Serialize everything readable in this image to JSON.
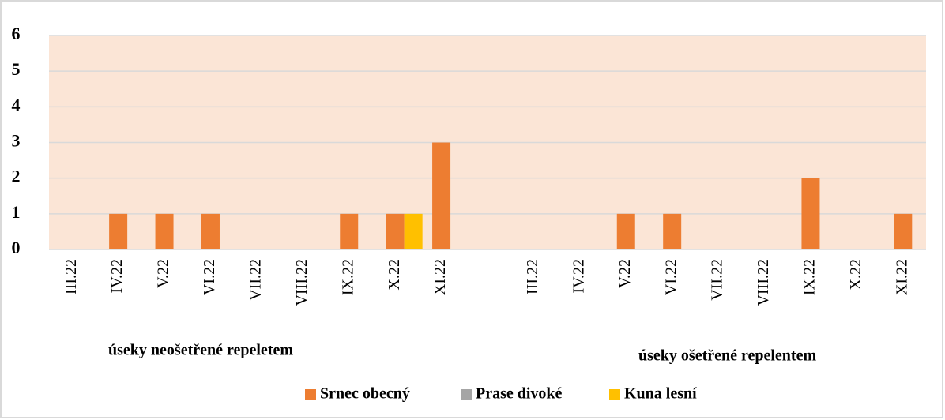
{
  "chart_data": {
    "type": "bar",
    "categories": [
      "III.22",
      "IV.22",
      "V.22",
      "VI.22",
      "VII.22",
      "VIII.22",
      "IX.22",
      "X.22",
      "XI.22",
      null,
      "III.22",
      "IV.22",
      "V.22",
      "VI.22",
      "VII.22",
      "VIII.22",
      "IX.22",
      "X.22",
      "XI.22"
    ],
    "series": [
      {
        "name": "Srnec obecný",
        "color": "#ed7d31",
        "values": [
          0,
          1,
          1,
          1,
          0,
          0,
          1,
          1,
          3,
          null,
          0,
          0,
          1,
          1,
          0,
          0,
          2,
          0,
          1
        ]
      },
      {
        "name": "Prase divoké",
        "color": "#a5a5a5",
        "values": [
          0,
          0,
          0,
          0,
          0,
          0,
          0,
          0,
          0,
          null,
          0,
          0,
          0,
          0,
          0,
          0,
          0,
          0,
          0
        ]
      },
      {
        "name": "Kuna lesní",
        "color": "#ffc000",
        "values": [
          0,
          0,
          0,
          0,
          0,
          0,
          0,
          1,
          0,
          null,
          0,
          0,
          0,
          0,
          0,
          0,
          0,
          0,
          0
        ]
      }
    ],
    "group_labels": [
      "úseky neošetřené repeletem",
      "úseky ošetřené repelentem"
    ],
    "ylim": [
      0,
      6
    ],
    "yticks": [
      0,
      1,
      2,
      3,
      4,
      5,
      6
    ],
    "grid": true,
    "legend": "bottom"
  }
}
